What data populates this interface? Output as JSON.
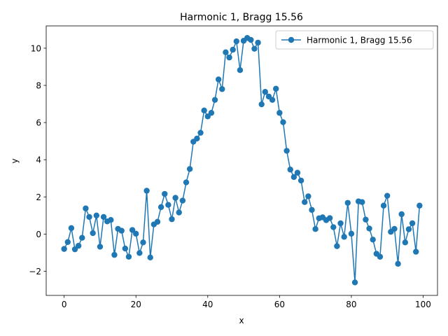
{
  "chart_data": {
    "type": "line",
    "title": "Harmonic 1, Bragg 15.56",
    "xlabel": "x",
    "ylabel": "y",
    "xlim": [
      -5,
      104
    ],
    "ylim": [
      -3.3,
      11.2
    ],
    "xticks": [
      0,
      20,
      40,
      60,
      80,
      100
    ],
    "yticks": [
      -2,
      0,
      2,
      4,
      6,
      8,
      10
    ],
    "grid": false,
    "legend_position": "upper right",
    "series": [
      {
        "name": "Harmonic 1, Bragg 15.56",
        "color": "#1f77b4",
        "marker": "circle",
        "x": [
          0,
          1,
          2,
          3,
          4,
          5,
          6,
          7,
          8,
          9,
          10,
          11,
          12,
          13,
          14,
          15,
          16,
          17,
          18,
          19,
          20,
          21,
          22,
          23,
          24,
          25,
          26,
          27,
          28,
          29,
          30,
          31,
          32,
          33,
          34,
          35,
          36,
          37,
          38,
          39,
          40,
          41,
          42,
          43,
          44,
          45,
          46,
          47,
          48,
          49,
          50,
          51,
          52,
          53,
          54,
          55,
          56,
          57,
          58,
          59,
          60,
          61,
          62,
          63,
          64,
          65,
          66,
          67,
          68,
          69,
          70,
          71,
          72,
          73,
          74,
          75,
          76,
          77,
          78,
          79,
          80,
          81,
          82,
          83,
          84,
          85,
          86,
          87,
          88,
          89,
          90,
          91,
          92,
          93,
          94,
          95,
          96,
          97,
          98,
          99
        ],
        "y": [
          -0.8,
          -0.43,
          0.32,
          -0.82,
          -0.63,
          -0.2,
          1.38,
          0.92,
          0.05,
          1.0,
          -0.68,
          0.92,
          0.68,
          0.76,
          -1.12,
          0.28,
          0.18,
          -0.78,
          -1.22,
          0.22,
          0.02,
          -1.02,
          -0.45,
          2.33,
          -1.26,
          0.52,
          0.66,
          1.45,
          2.16,
          1.57,
          0.8,
          1.95,
          1.16,
          1.8,
          2.78,
          3.5,
          4.97,
          5.14,
          5.45,
          6.65,
          6.33,
          6.52,
          7.22,
          8.32,
          7.8,
          9.78,
          9.5,
          9.92,
          10.37,
          8.82,
          10.4,
          10.55,
          10.45,
          9.97,
          10.3,
          6.98,
          7.65,
          7.4,
          7.22,
          7.82,
          6.52,
          6.02,
          4.48,
          3.47,
          3.07,
          3.3,
          2.88,
          1.72,
          2.03,
          1.3,
          0.27,
          0.85,
          0.9,
          0.75,
          0.86,
          0.37,
          -0.65,
          0.58,
          -0.15,
          1.68,
          0.02,
          -2.6,
          1.76,
          1.72,
          0.78,
          0.3,
          -0.3,
          -1.06,
          -1.22,
          1.53,
          2.06,
          0.12,
          0.28,
          -1.6,
          1.07,
          -0.45,
          0.26,
          0.58,
          -0.95,
          1.53
        ]
      }
    ]
  }
}
